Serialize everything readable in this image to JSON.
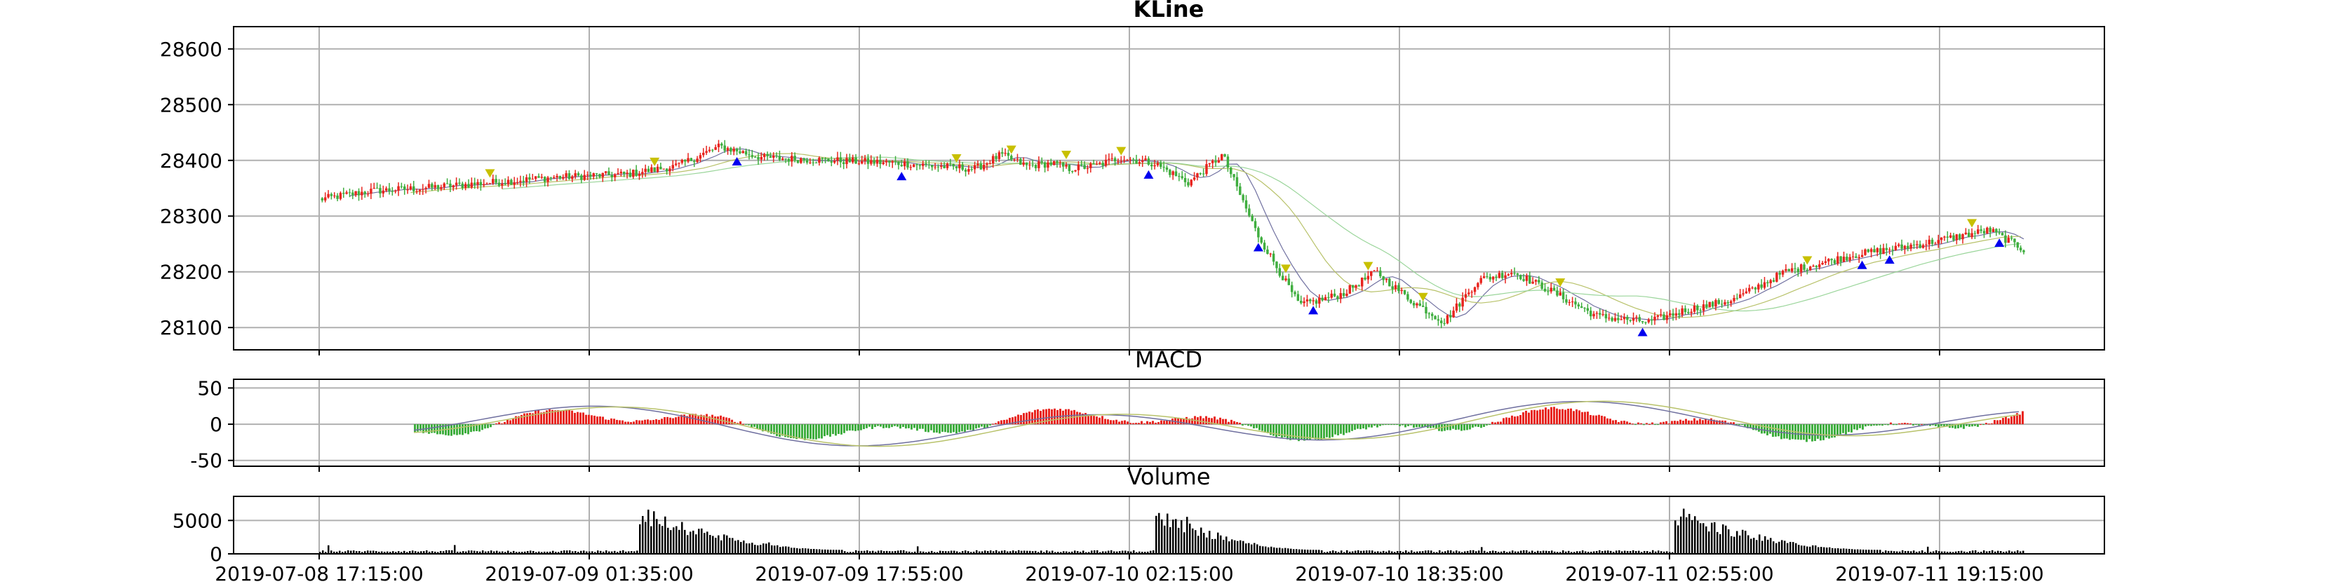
{
  "chart_data": [
    {
      "type": "candlestick",
      "title": "KLine",
      "ylim": [
        28060,
        28640
      ],
      "y_ticks": [
        28100,
        28200,
        28300,
        28400,
        28500,
        28600
      ],
      "grid": true,
      "overlays": [
        "moving averages (thin lines)",
        "buy markers (blue triangles up)",
        "sell markers (yellow triangles down)"
      ],
      "colors": {
        "up": "#e8251f",
        "down": "#3fae3f",
        "buy_marker": "#0000ee",
        "sell_marker": "#c8c000"
      },
      "close_series": {
        "x": [
          0,
          0.03,
          0.06,
          0.1,
          0.14,
          0.18,
          0.21,
          0.235,
          0.26,
          0.3,
          0.34,
          0.36,
          0.385,
          0.4,
          0.415,
          0.43,
          0.44,
          0.455,
          0.47,
          0.49,
          0.51,
          0.53,
          0.55,
          0.575,
          0.6,
          0.62,
          0.64,
          0.66,
          0.68,
          0.7,
          0.72,
          0.75,
          0.78,
          0.8,
          0.815,
          0.83,
          0.86,
          0.9,
          0.94,
          0.98,
          1.0
        ],
        "y": [
          28330,
          28345,
          28350,
          28360,
          28370,
          28375,
          28390,
          28425,
          28405,
          28400,
          28395,
          28390,
          28385,
          28410,
          28390,
          28395,
          28385,
          28390,
          28405,
          28395,
          28360,
          28410,
          28270,
          28140,
          28160,
          28200,
          28150,
          28110,
          28185,
          28200,
          28170,
          28120,
          28110,
          28130,
          28140,
          28150,
          28200,
          28230,
          28250,
          28275,
          28240
        ]
      }
    },
    {
      "type": "bar+line",
      "title": "MACD",
      "ylim": [
        -58,
        62
      ],
      "y_ticks": [
        -50,
        0,
        50
      ],
      "grid": true,
      "colors": {
        "positive": "#e8251f",
        "negative": "#3fae3f",
        "dif": "#6f6f9f",
        "dea": "#b8c26a"
      }
    },
    {
      "type": "bar",
      "title": "Volume",
      "ylim": [
        0,
        8600
      ],
      "y_ticks": [
        0,
        5000
      ],
      "grid": true,
      "x_tick_labels": [
        "2019-07-08 17:15:00",
        "2019-07-09 01:35:00",
        "2019-07-09 17:55:00",
        "2019-07-10 02:15:00",
        "2019-07-10 18:35:00",
        "2019-07-11 02:55:00",
        "2019-07-11 19:15:00"
      ],
      "colors": {
        "bar": "#000000"
      }
    }
  ]
}
